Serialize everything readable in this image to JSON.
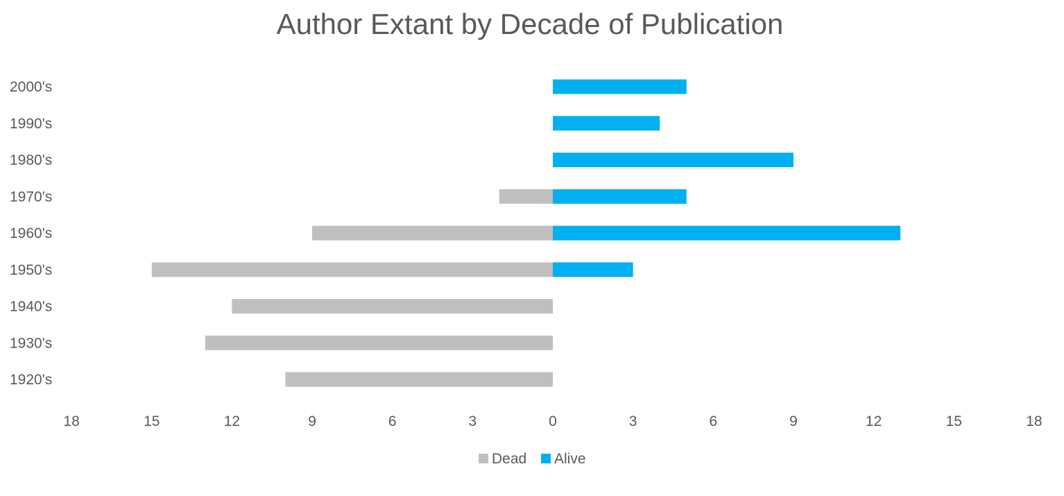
{
  "chart_data": {
    "type": "bar",
    "orientation": "horizontal",
    "title": "Author Extant by Decade of Publication",
    "categories": [
      "1920's",
      "1930's",
      "1940's",
      "1950's",
      "1960's",
      "1970's",
      "1980's",
      "1990's",
      "2000's"
    ],
    "series": [
      {
        "name": "Dead",
        "values": [
          10,
          13,
          12,
          15,
          9,
          2,
          0,
          0,
          0
        ],
        "color": "#bfbfbf",
        "direction": "left"
      },
      {
        "name": "Alive",
        "values": [
          0,
          0,
          0,
          3,
          13,
          5,
          9,
          4,
          5
        ],
        "color": "#00b0f0",
        "direction": "right"
      }
    ],
    "xlim": [
      -18,
      18
    ],
    "x_ticks": [
      "18",
      "15",
      "12",
      "9",
      "6",
      "3",
      "0",
      "3",
      "6",
      "9",
      "12",
      "15",
      "18"
    ],
    "grid": false,
    "legend_position": "bottom"
  }
}
